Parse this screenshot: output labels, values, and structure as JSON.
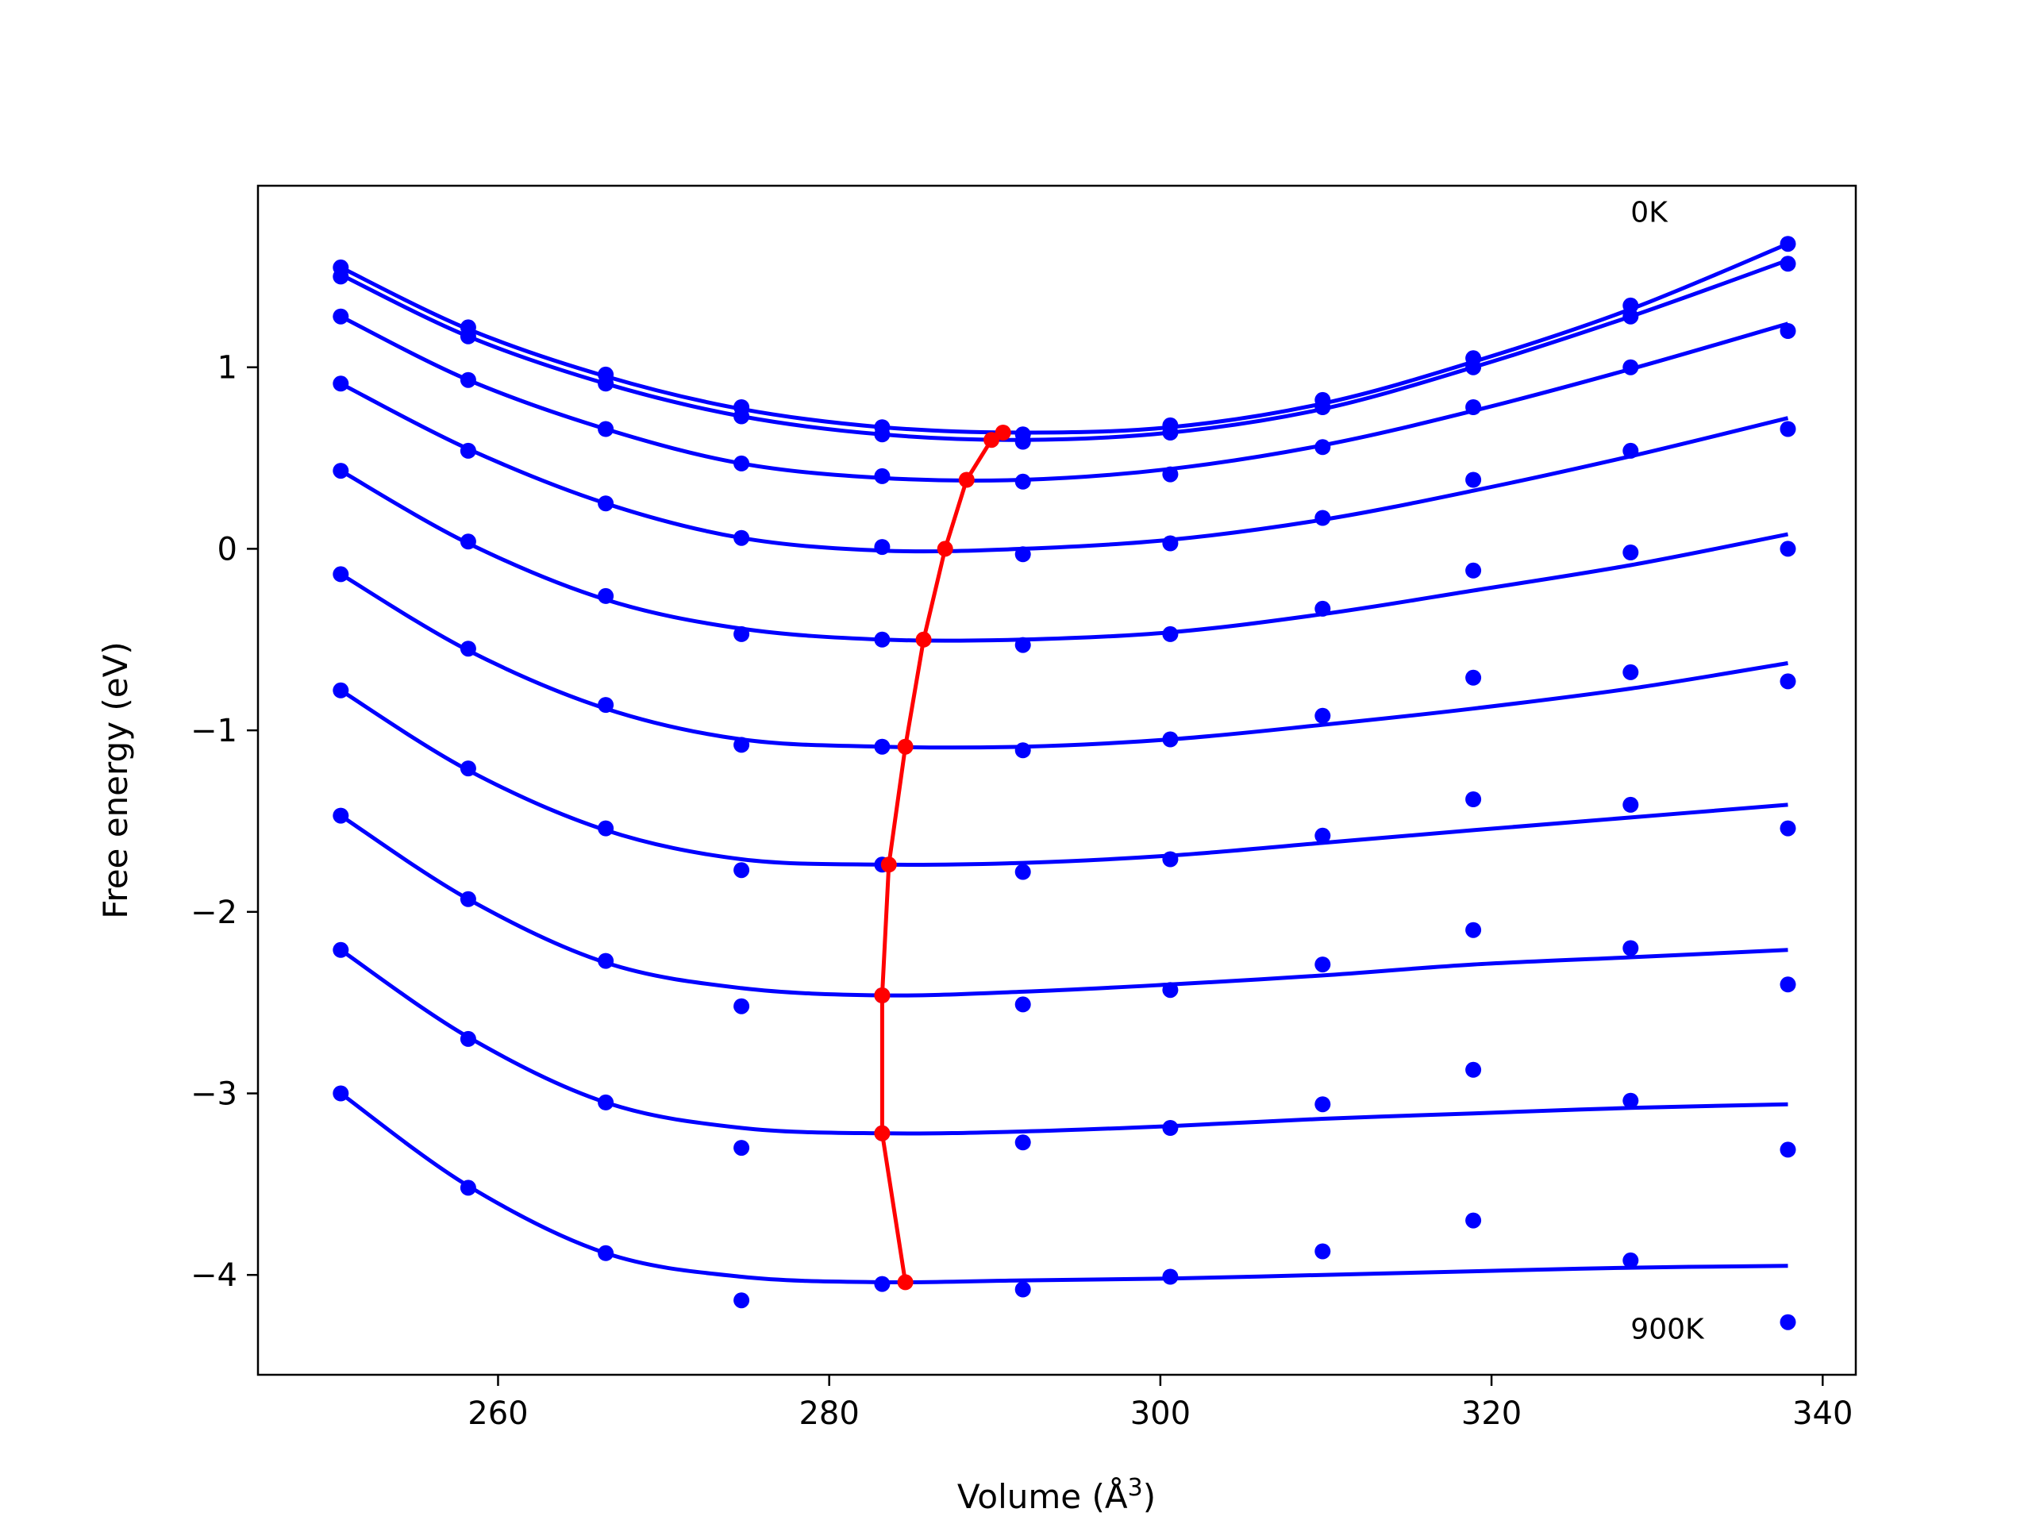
{
  "chart_data": {
    "type": "scatter",
    "title": "",
    "xlabel": "Volume (Å",
    "xlabel_superscript": "3",
    "xlabel_close": ")",
    "ylabel": "Free energy (eV)",
    "xlim": [
      245.5,
      342
    ],
    "ylim": [
      -4.55,
      2.0
    ],
    "xticks": [
      260,
      280,
      300,
      320,
      340
    ],
    "yticks": [
      1,
      0,
      -1,
      -2,
      -3,
      -4
    ],
    "ytick_labels": [
      "1",
      "0",
      "−1",
      "−2",
      "−3",
      "−4"
    ],
    "grid": false,
    "annotations": [
      {
        "text": "0K",
        "x": 328.4,
        "y": 1.8
      },
      {
        "text": "900K",
        "x": 328.4,
        "y": -4.35
      }
    ],
    "colors": {
      "series": "#0000ff",
      "minimum": "#ff0000",
      "axes": "#000000"
    },
    "x": [
      250.5,
      258.2,
      266.5,
      274.7,
      283.2,
      291.7,
      300.6,
      309.8,
      318.9,
      328.4,
      337.9
    ],
    "series": [
      {
        "points_y": [
          1.55,
          1.22,
          0.96,
          0.78,
          0.67,
          0.63,
          0.68,
          0.82,
          1.05,
          1.34,
          1.68
        ],
        "fit_y": [
          1.55,
          1.21,
          0.95,
          0.77,
          0.67,
          0.64,
          0.67,
          0.8,
          1.03,
          1.32,
          1.68
        ]
      },
      {
        "points_y": [
          1.5,
          1.17,
          0.91,
          0.73,
          0.63,
          0.59,
          0.64,
          0.78,
          1.0,
          1.28,
          1.57
        ],
        "fit_y": [
          1.51,
          1.17,
          0.91,
          0.73,
          0.63,
          0.6,
          0.64,
          0.77,
          1.0,
          1.28,
          1.59
        ]
      },
      {
        "points_y": [
          1.28,
          0.93,
          0.66,
          0.47,
          0.4,
          0.37,
          0.41,
          0.56,
          0.78,
          1.0,
          1.2
        ],
        "fit_y": [
          1.28,
          0.93,
          0.66,
          0.47,
          0.39,
          0.38,
          0.44,
          0.57,
          0.76,
          0.99,
          1.24
        ]
      },
      {
        "points_y": [
          0.91,
          0.54,
          0.25,
          0.06,
          0.01,
          -0.03,
          0.03,
          0.17,
          0.38,
          0.54,
          0.66
        ],
        "fit_y": [
          0.91,
          0.55,
          0.25,
          0.06,
          -0.01,
          0.0,
          0.05,
          0.16,
          0.32,
          0.51,
          0.72
        ]
      },
      {
        "points_y": [
          0.43,
          0.04,
          -0.26,
          -0.47,
          -0.5,
          -0.53,
          -0.47,
          -0.33,
          -0.12,
          -0.02,
          0.0
        ],
        "fit_y": [
          0.43,
          0.03,
          -0.28,
          -0.44,
          -0.5,
          -0.5,
          -0.46,
          -0.36,
          -0.23,
          -0.09,
          0.08
        ]
      },
      {
        "points_y": [
          -0.14,
          -0.55,
          -0.86,
          -1.08,
          -1.09,
          -1.11,
          -1.05,
          -0.92,
          -0.71,
          -0.68,
          -0.73
        ],
        "fit_y": [
          -0.14,
          -0.56,
          -0.88,
          -1.05,
          -1.09,
          -1.09,
          -1.05,
          -0.97,
          -0.88,
          -0.77,
          -0.63
        ]
      },
      {
        "points_y": [
          -0.78,
          -1.21,
          -1.54,
          -1.77,
          -1.74,
          -1.78,
          -1.71,
          -1.58,
          -1.38,
          -1.41,
          -1.54
        ],
        "fit_y": [
          -0.78,
          -1.22,
          -1.55,
          -1.71,
          -1.74,
          -1.73,
          -1.69,
          -1.62,
          -1.55,
          -1.48,
          -1.41
        ]
      },
      {
        "points_y": [
          -1.47,
          -1.93,
          -2.27,
          -2.52,
          -2.46,
          -2.51,
          -2.43,
          -2.29,
          -2.1,
          -2.2,
          -2.4
        ],
        "fit_y": [
          -1.47,
          -1.93,
          -2.28,
          -2.42,
          -2.46,
          -2.44,
          -2.4,
          -2.35,
          -2.29,
          -2.25,
          -2.21
        ]
      },
      {
        "points_y": [
          -2.21,
          -2.7,
          -3.05,
          -3.3,
          -3.22,
          -3.27,
          -3.19,
          -3.06,
          -2.87,
          -3.04,
          -3.31
        ],
        "fit_y": [
          -2.21,
          -2.69,
          -3.05,
          -3.19,
          -3.22,
          -3.21,
          -3.18,
          -3.14,
          -3.11,
          -3.08,
          -3.06
        ]
      },
      {
        "points_y": [
          -3.0,
          -3.52,
          -3.88,
          -4.14,
          -4.05,
          -4.08,
          -4.01,
          -3.87,
          -3.7,
          -3.92,
          -4.26
        ],
        "fit_y": [
          -3.0,
          -3.51,
          -3.88,
          -4.01,
          -4.04,
          -4.03,
          -4.02,
          -4.0,
          -3.98,
          -3.96,
          -3.95
        ]
      }
    ],
    "minimum_path": {
      "x": [
        290.5,
        289.8,
        288.3,
        287.0,
        285.7,
        284.6,
        283.6,
        283.2,
        283.2,
        284.6
      ],
      "y": [
        0.64,
        0.6,
        0.38,
        0.0,
        -0.5,
        -1.09,
        -1.74,
        -2.46,
        -3.22,
        -4.04
      ]
    }
  }
}
